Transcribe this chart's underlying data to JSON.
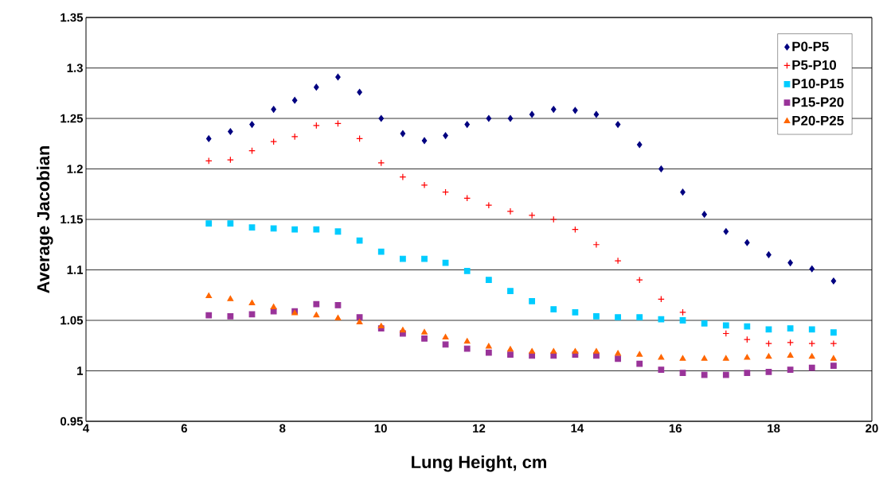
{
  "chart_data": {
    "type": "scatter",
    "xlabel": "Lung Height, cm",
    "ylabel": "Average Jacobian",
    "x": [
      6.5,
      6.94,
      7.38,
      7.82,
      8.25,
      8.69,
      9.13,
      9.57,
      10.01,
      10.45,
      10.89,
      11.32,
      11.76,
      12.2,
      12.64,
      13.08,
      13.52,
      13.96,
      14.39,
      14.83,
      15.27,
      15.71,
      16.15,
      16.59,
      17.03,
      17.46,
      17.9,
      18.34,
      18.78,
      19.22
    ],
    "series": [
      {
        "name": "P0-P5",
        "color": "#000080",
        "marker": "diamond",
        "values": [
          1.23,
          1.237,
          1.244,
          1.259,
          1.268,
          1.281,
          1.291,
          1.276,
          1.25,
          1.235,
          1.228,
          1.233,
          1.244,
          1.25,
          1.25,
          1.254,
          1.259,
          1.258,
          1.254,
          1.244,
          1.224,
          1.2,
          1.177,
          1.155,
          1.138,
          1.127,
          1.115,
          1.107,
          1.101,
          1.089
        ]
      },
      {
        "name": "P5-P10",
        "color": "#ff0000",
        "marker": "cross",
        "values": [
          1.208,
          1.209,
          1.218,
          1.227,
          1.232,
          1.243,
          1.245,
          1.23,
          1.206,
          1.192,
          1.184,
          1.177,
          1.171,
          1.164,
          1.158,
          1.154,
          1.15,
          1.14,
          1.125,
          1.109,
          1.09,
          1.071,
          1.058,
          null,
          1.037,
          1.031,
          1.027,
          1.028,
          1.027,
          1.027
        ]
      },
      {
        "name": "P10-P15",
        "color": "#00ccff",
        "marker": "square",
        "values": [
          1.146,
          1.146,
          1.142,
          1.141,
          1.14,
          1.14,
          1.138,
          1.129,
          1.118,
          1.111,
          1.111,
          1.107,
          1.099,
          1.09,
          1.079,
          1.069,
          1.061,
          1.058,
          1.054,
          1.053,
          1.053,
          1.051,
          1.05,
          1.047,
          1.045,
          1.044,
          1.041,
          1.042,
          1.041,
          1.038
        ]
      },
      {
        "name": "P15-P20",
        "color": "#993399",
        "marker": "square",
        "values": [
          1.055,
          1.054,
          1.056,
          1.059,
          1.059,
          1.066,
          1.065,
          1.053,
          1.042,
          1.037,
          1.032,
          1.026,
          1.022,
          1.018,
          1.016,
          1.015,
          1.015,
          1.016,
          1.015,
          1.012,
          1.007,
          1.001,
          0.998,
          0.996,
          0.996,
          0.998,
          0.999,
          1.001,
          1.003,
          1.005
        ]
      },
      {
        "name": "P20-P25",
        "color": "#ff6600",
        "marker": "triangle",
        "values": [
          1.074,
          1.071,
          1.067,
          1.063,
          1.057,
          1.055,
          1.052,
          1.048,
          1.044,
          1.04,
          1.038,
          1.033,
          1.029,
          1.024,
          1.021,
          1.019,
          1.019,
          1.019,
          1.019,
          1.017,
          1.016,
          1.013,
          1.012,
          1.012,
          1.012,
          1.013,
          1.014,
          1.015,
          1.014,
          1.012
        ]
      }
    ],
    "xlim": [
      4,
      20
    ],
    "xticks": [
      4,
      6,
      8,
      10,
      12,
      14,
      16,
      18,
      20
    ],
    "ylim": [
      0.95,
      1.35
    ],
    "yticks": [
      0.95,
      1,
      1.05,
      1.1,
      1.15,
      1.2,
      1.25,
      1.3,
      1.35
    ],
    "grid": "y",
    "legend": "top right"
  }
}
